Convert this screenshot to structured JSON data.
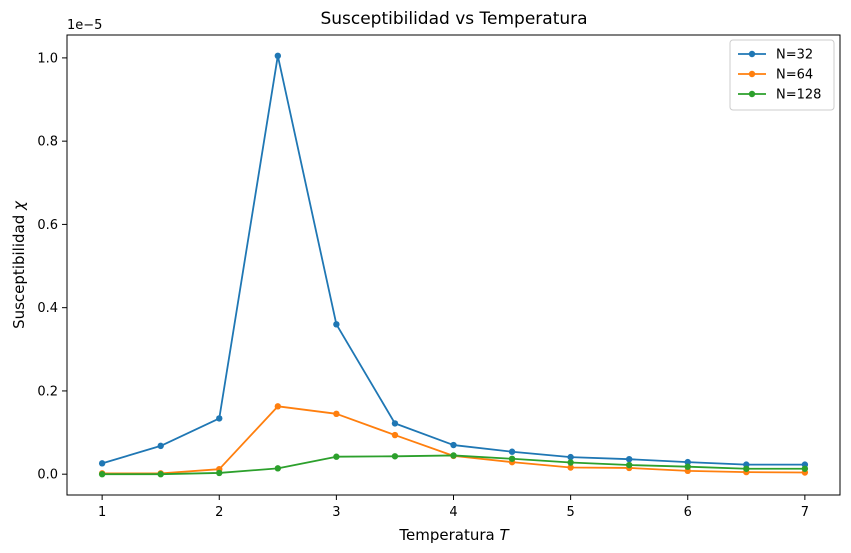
{
  "chart_data": {
    "type": "line",
    "title": "Susceptibilidad vs Temperatura",
    "xlabel_text": "Temperatura ",
    "xlabel_var": "T",
    "ylabel_text": "Susceptibilidad ",
    "ylabel_var": "χ",
    "y_offset_text": "1e−5",
    "xlim": [
      0.7,
      7.3
    ],
    "ylim": [
      -0.05,
      1.055
    ],
    "x_ticks": [
      1,
      2,
      3,
      4,
      5,
      6,
      7
    ],
    "x_tick_labels": [
      "1",
      "2",
      "3",
      "4",
      "5",
      "6",
      "7"
    ],
    "y_ticks": [
      0.0,
      0.2,
      0.4,
      0.6,
      0.8,
      1.0
    ],
    "y_tick_labels": [
      "0.0",
      "0.2",
      "0.4",
      "0.6",
      "0.8",
      "1.0"
    ],
    "x": [
      1,
      1.5,
      2,
      2.5,
      3,
      3.5,
      4,
      4.5,
      5,
      5.5,
      6,
      6.5,
      7
    ],
    "series": [
      {
        "name": "N=32",
        "color": "#1f77b4",
        "values": [
          0.026,
          0.068,
          0.134,
          1.005,
          0.36,
          0.122,
          0.07,
          0.054,
          0.041,
          0.036,
          0.029,
          0.023,
          0.023
        ]
      },
      {
        "name": "N=64",
        "color": "#ff7f0e",
        "values": [
          0.002,
          0.002,
          0.012,
          0.163,
          0.145,
          0.094,
          0.044,
          0.029,
          0.016,
          0.015,
          0.008,
          0.005,
          0.004
        ]
      },
      {
        "name": "N=128",
        "color": "#2ca02c",
        "values": [
          0.0,
          0.0,
          0.003,
          0.014,
          0.042,
          0.043,
          0.045,
          0.037,
          0.028,
          0.022,
          0.018,
          0.013,
          0.013
        ]
      }
    ],
    "legend_position": "top-right",
    "grid": false
  }
}
